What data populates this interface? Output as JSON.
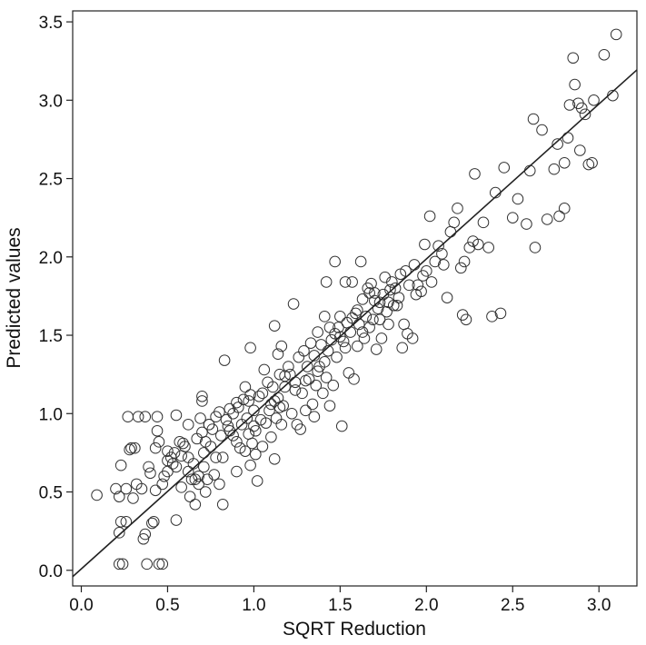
{
  "chart_data": {
    "type": "scatter",
    "title": "",
    "xlabel": "SQRT Reduction",
    "ylabel": "Predicted values",
    "xlim": [
      -0.05,
      3.22
    ],
    "ylim": [
      -0.1,
      3.57
    ],
    "xticks": [
      0.0,
      0.5,
      1.0,
      1.5,
      2.0,
      2.5,
      3.0
    ],
    "xtick_labels": [
      "0.0",
      "0.5",
      "1.0",
      "1.5",
      "2.0",
      "2.5",
      "3.0"
    ],
    "yticks": [
      0.0,
      0.5,
      1.0,
      1.5,
      2.0,
      2.5,
      3.0,
      3.5
    ],
    "ytick_labels": [
      "0.0",
      "0.5",
      "1.0",
      "1.5",
      "2.0",
      "2.5",
      "3.0",
      "3.5"
    ],
    "grid": false,
    "marker": "open-circle",
    "fit_line": {
      "slope": 0.989,
      "intercept": 0.009
    },
    "points": [
      [
        0.09,
        0.48
      ],
      [
        0.2,
        0.52
      ],
      [
        0.22,
        0.47
      ],
      [
        0.22,
        0.24
      ],
      [
        0.23,
        0.31
      ],
      [
        0.23,
        0.67
      ],
      [
        0.22,
        0.04
      ],
      [
        0.24,
        0.04
      ],
      [
        0.26,
        0.31
      ],
      [
        0.26,
        0.52
      ],
      [
        0.27,
        0.98
      ],
      [
        0.28,
        0.77
      ],
      [
        0.29,
        0.78
      ],
      [
        0.3,
        0.46
      ],
      [
        0.31,
        0.78
      ],
      [
        0.32,
        0.55
      ],
      [
        0.33,
        0.98
      ],
      [
        0.35,
        0.52
      ],
      [
        0.37,
        0.98
      ],
      [
        0.37,
        0.23
      ],
      [
        0.38,
        0.04
      ],
      [
        0.39,
        0.66
      ],
      [
        0.4,
        0.62
      ],
      [
        0.41,
        0.3
      ],
      [
        0.42,
        0.31
      ],
      [
        0.43,
        0.51
      ],
      [
        0.43,
        0.78
      ],
      [
        0.44,
        0.98
      ],
      [
        0.44,
        0.89
      ],
      [
        0.45,
        0.82
      ],
      [
        0.45,
        0.04
      ],
      [
        0.47,
        0.04
      ],
      [
        0.48,
        0.6
      ],
      [
        0.5,
        0.7
      ],
      [
        0.5,
        0.63
      ],
      [
        0.5,
        0.76
      ],
      [
        0.52,
        0.72
      ],
      [
        0.53,
        0.68
      ],
      [
        0.54,
        0.75
      ],
      [
        0.55,
        0.66
      ],
      [
        0.55,
        0.32
      ],
      [
        0.57,
        0.82
      ],
      [
        0.58,
        0.73
      ],
      [
        0.58,
        0.53
      ],
      [
        0.6,
        0.79
      ],
      [
        0.62,
        0.63
      ],
      [
        0.62,
        0.72
      ],
      [
        0.63,
        0.47
      ],
      [
        0.64,
        0.58
      ],
      [
        0.65,
        0.68
      ],
      [
        0.66,
        0.42
      ],
      [
        0.67,
        0.84
      ],
      [
        0.68,
        0.6
      ],
      [
        0.69,
        0.97
      ],
      [
        0.7,
        1.11
      ],
      [
        0.7,
        1.08
      ],
      [
        0.7,
        0.88
      ],
      [
        0.71,
        0.75
      ],
      [
        0.71,
        0.66
      ],
      [
        0.72,
        0.82
      ],
      [
        0.72,
        0.5
      ],
      [
        0.73,
        0.58
      ],
      [
        0.74,
        0.93
      ],
      [
        0.75,
        0.79
      ],
      [
        0.76,
        0.9
      ],
      [
        0.77,
        0.61
      ],
      [
        0.78,
        0.98
      ],
      [
        0.8,
        1.01
      ],
      [
        0.81,
        0.86
      ],
      [
        0.82,
        0.72
      ],
      [
        0.82,
        0.42
      ],
      [
        0.83,
        1.34
      ],
      [
        0.84,
        0.96
      ],
      [
        0.85,
        0.92
      ],
      [
        0.86,
        0.89
      ],
      [
        0.88,
        1.0
      ],
      [
        0.9,
        0.82
      ],
      [
        0.9,
        0.63
      ],
      [
        0.91,
        1.04
      ],
      [
        0.92,
        0.78
      ],
      [
        0.93,
        0.93
      ],
      [
        0.94,
        1.09
      ],
      [
        0.95,
        0.76
      ],
      [
        0.96,
        0.97
      ],
      [
        0.97,
        0.87
      ],
      [
        0.97,
        1.08
      ],
      [
        0.98,
        1.42
      ],
      [
        0.98,
        0.67
      ],
      [
        0.99,
        0.81
      ],
      [
        1.0,
        1.02
      ],
      [
        1.0,
        0.92
      ],
      [
        1.01,
        0.74
      ],
      [
        1.02,
        0.57
      ],
      [
        1.03,
        1.11
      ],
      [
        1.04,
        0.96
      ],
      [
        1.05,
        1.13
      ],
      [
        1.06,
        1.28
      ],
      [
        1.07,
        0.94
      ],
      [
        1.08,
        1.2
      ],
      [
        1.09,
        1.02
      ],
      [
        1.1,
        0.85
      ],
      [
        1.1,
        1.06
      ],
      [
        1.11,
        1.17
      ],
      [
        1.12,
        1.56
      ],
      [
        1.12,
        0.71
      ],
      [
        1.13,
        0.97
      ],
      [
        1.14,
        1.1
      ],
      [
        1.14,
        1.38
      ],
      [
        1.15,
        1.25
      ],
      [
        1.16,
        0.93
      ],
      [
        1.16,
        1.43
      ],
      [
        1.17,
        1.05
      ],
      [
        1.18,
        1.17
      ],
      [
        1.2,
        1.3
      ],
      [
        1.21,
        1.25
      ],
      [
        1.22,
        1.0
      ],
      [
        1.23,
        1.7
      ],
      [
        1.24,
        1.2
      ],
      [
        1.25,
        0.93
      ],
      [
        1.26,
        1.36
      ],
      [
        1.28,
        1.13
      ],
      [
        1.29,
        1.4
      ],
      [
        1.3,
        1.02
      ],
      [
        1.31,
        1.3
      ],
      [
        1.32,
        1.22
      ],
      [
        1.33,
        1.45
      ],
      [
        1.34,
        1.06
      ],
      [
        1.35,
        1.37
      ],
      [
        1.36,
        1.18
      ],
      [
        1.37,
        1.52
      ],
      [
        1.38,
        1.3
      ],
      [
        1.39,
        1.44
      ],
      [
        1.4,
        1.13
      ],
      [
        1.41,
        1.62
      ],
      [
        1.42,
        1.23
      ],
      [
        1.42,
        1.84
      ],
      [
        1.43,
        1.4
      ],
      [
        1.44,
        1.55
      ],
      [
        1.45,
        1.47
      ],
      [
        1.46,
        1.18
      ],
      [
        1.47,
        1.97
      ],
      [
        1.48,
        1.36
      ],
      [
        1.49,
        1.55
      ],
      [
        1.5,
        1.62
      ],
      [
        1.51,
        0.92
      ],
      [
        1.52,
        1.46
      ],
      [
        1.53,
        1.84
      ],
      [
        1.54,
        1.58
      ],
      [
        1.55,
        1.26
      ],
      [
        1.56,
        1.52
      ],
      [
        1.57,
        1.84
      ],
      [
        1.58,
        1.22
      ],
      [
        1.59,
        1.64
      ],
      [
        1.6,
        1.43
      ],
      [
        1.61,
        1.57
      ],
      [
        1.62,
        1.97
      ],
      [
        1.63,
        1.73
      ],
      [
        1.64,
        1.48
      ],
      [
        1.65,
        1.62
      ],
      [
        1.66,
        1.8
      ],
      [
        1.67,
        1.55
      ],
      [
        1.68,
        1.83
      ],
      [
        1.69,
        1.6
      ],
      [
        1.7,
        1.77
      ],
      [
        1.71,
        1.41
      ],
      [
        1.72,
        1.67
      ],
      [
        1.73,
        1.71
      ],
      [
        1.74,
        1.48
      ],
      [
        1.75,
        1.76
      ],
      [
        1.76,
        1.87
      ],
      [
        1.77,
        1.65
      ],
      [
        1.78,
        1.71
      ],
      [
        1.79,
        1.79
      ],
      [
        1.8,
        1.84
      ],
      [
        1.81,
        1.69
      ],
      [
        1.82,
        1.8
      ],
      [
        1.84,
        1.74
      ],
      [
        1.85,
        1.89
      ],
      [
        1.86,
        1.42
      ],
      [
        1.87,
        1.57
      ],
      [
        1.88,
        1.91
      ],
      [
        1.89,
        1.51
      ],
      [
        1.9,
        1.82
      ],
      [
        1.92,
        1.48
      ],
      [
        1.93,
        1.95
      ],
      [
        1.95,
        1.82
      ],
      [
        1.97,
        1.78
      ],
      [
        1.98,
        1.88
      ],
      [
        1.99,
        2.08
      ],
      [
        2.0,
        1.91
      ],
      [
        2.02,
        2.26
      ],
      [
        2.03,
        1.84
      ],
      [
        2.05,
        1.97
      ],
      [
        2.07,
        2.07
      ],
      [
        2.09,
        2.02
      ],
      [
        2.1,
        1.95
      ],
      [
        2.12,
        1.74
      ],
      [
        2.14,
        2.16
      ],
      [
        2.16,
        2.22
      ],
      [
        2.18,
        2.31
      ],
      [
        2.2,
        1.93
      ],
      [
        2.21,
        1.63
      ],
      [
        2.22,
        1.97
      ],
      [
        2.23,
        1.6
      ],
      [
        2.25,
        2.06
      ],
      [
        2.27,
        2.1
      ],
      [
        2.28,
        2.53
      ],
      [
        2.3,
        2.08
      ],
      [
        2.33,
        2.22
      ],
      [
        2.36,
        2.06
      ],
      [
        2.38,
        1.62
      ],
      [
        2.4,
        2.41
      ],
      [
        2.43,
        1.64
      ],
      [
        2.45,
        2.57
      ],
      [
        2.5,
        2.25
      ],
      [
        2.53,
        2.37
      ],
      [
        2.58,
        2.21
      ],
      [
        2.6,
        2.55
      ],
      [
        2.62,
        2.88
      ],
      [
        2.63,
        2.06
      ],
      [
        2.67,
        2.81
      ],
      [
        2.7,
        2.24
      ],
      [
        2.74,
        2.56
      ],
      [
        2.76,
        2.72
      ],
      [
        2.77,
        2.26
      ],
      [
        2.8,
        2.31
      ],
      [
        2.8,
        2.6
      ],
      [
        2.82,
        2.76
      ],
      [
        2.83,
        2.97
      ],
      [
        2.85,
        3.27
      ],
      [
        2.86,
        3.1
      ],
      [
        2.88,
        2.98
      ],
      [
        2.89,
        2.68
      ],
      [
        2.9,
        2.95
      ],
      [
        2.92,
        2.91
      ],
      [
        2.94,
        2.59
      ],
      [
        2.96,
        2.6
      ],
      [
        2.97,
        3.0
      ],
      [
        3.03,
        3.29
      ],
      [
        3.08,
        3.03
      ],
      [
        3.1,
        3.42
      ],
      [
        0.36,
        0.2
      ],
      [
        0.62,
        0.93
      ],
      [
        0.8,
        0.55
      ],
      [
        0.95,
        1.17
      ],
      [
        1.05,
        0.79
      ],
      [
        1.15,
        1.04
      ],
      [
        1.27,
        0.9
      ],
      [
        1.35,
        0.98
      ],
      [
        1.44,
        1.05
      ],
      [
        1.53,
        1.42
      ],
      [
        1.63,
        1.52
      ],
      [
        1.73,
        1.6
      ],
      [
        1.83,
        1.69
      ],
      [
        0.55,
        0.99
      ],
      [
        0.66,
        0.58
      ],
      [
        0.78,
        0.72
      ],
      [
        0.88,
        0.86
      ],
      [
        1.01,
        0.89
      ],
      [
        1.18,
        1.24
      ],
      [
        1.3,
        1.21
      ],
      [
        1.41,
        1.33
      ],
      [
        1.5,
        1.49
      ],
      [
        1.6,
        1.66
      ],
      [
        1.7,
        1.72
      ],
      [
        1.94,
        1.76
      ],
      [
        0.47,
        0.55
      ],
      [
        0.59,
        0.81
      ],
      [
        0.74,
        0.93
      ],
      [
        0.86,
        1.03
      ],
      [
        0.98,
        1.12
      ],
      [
        1.12,
        1.08
      ],
      [
        1.24,
        1.15
      ],
      [
        1.37,
        1.27
      ],
      [
        1.47,
        1.51
      ],
      [
        1.57,
        1.61
      ],
      [
        1.67,
        1.77
      ],
      [
        1.78,
        1.57
      ],
      [
        0.68,
        0.55
      ],
      [
        0.9,
        1.07
      ]
    ]
  }
}
